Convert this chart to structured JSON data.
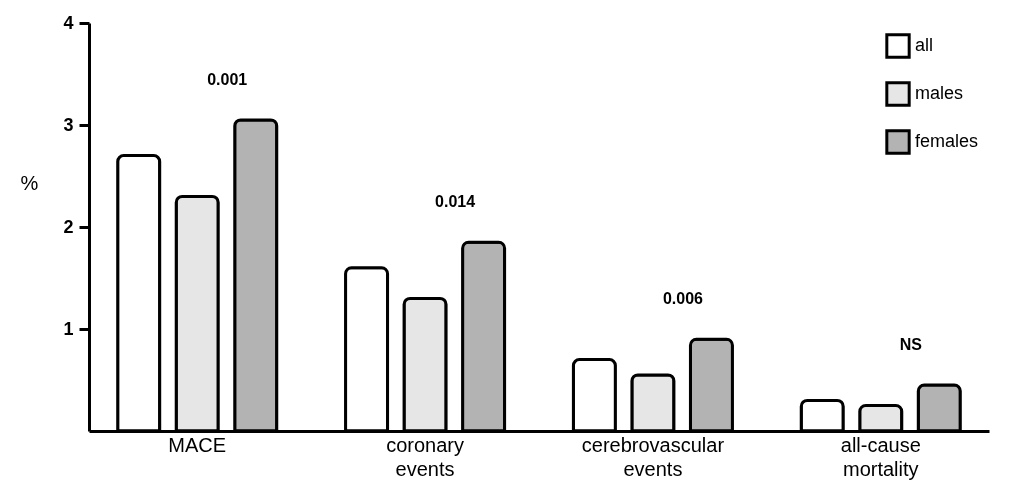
{
  "chart_data": {
    "type": "bar",
    "ylabel": "%",
    "categories": [
      "MACE",
      "coronary events",
      "cerebrovascular events",
      "all-cause mortality"
    ],
    "series": [
      {
        "name": "all",
        "color": "#ffffff",
        "values": [
          2.7,
          1.6,
          0.7,
          0.3
        ]
      },
      {
        "name": "males",
        "color": "#e6e6e6",
        "values": [
          2.3,
          1.3,
          0.55,
          0.25
        ]
      },
      {
        "name": "females",
        "color": "#b3b3b3",
        "values": [
          3.05,
          1.85,
          0.9,
          0.45
        ]
      }
    ],
    "ylim": [
      0,
      4
    ],
    "yticks": [
      1,
      2,
      3,
      4
    ],
    "grid": false,
    "legend": "top right",
    "annotations": [
      "0.001",
      "0.014",
      "0.006",
      "NS"
    ]
  }
}
